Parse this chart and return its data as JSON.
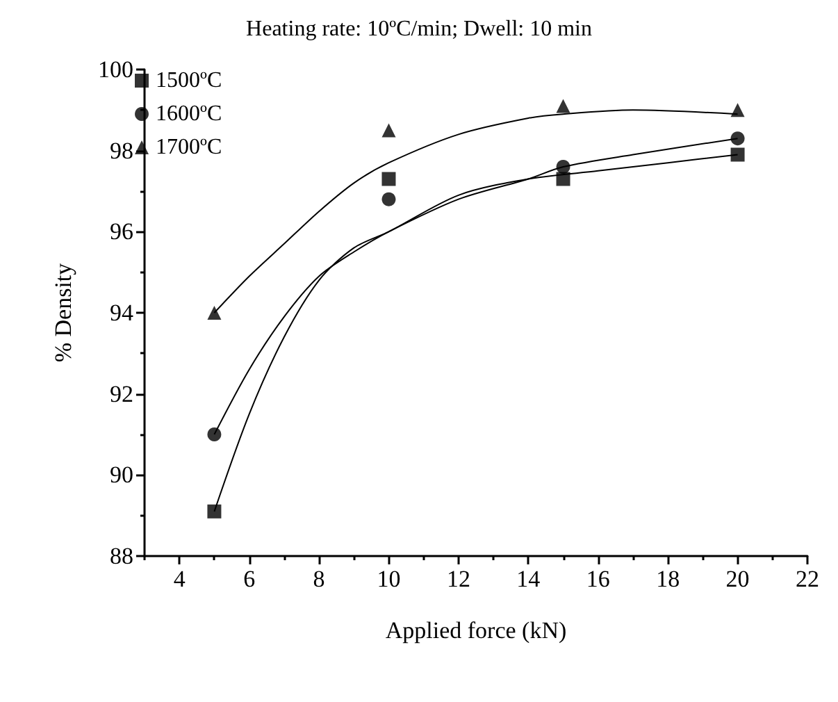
{
  "chart_data": {
    "type": "scatter",
    "title": "Heating rate: 10ºC/min; Dwell: 10 min",
    "xlabel": "Applied force (kN)",
    "ylabel": "% Density",
    "xlim": [
      3,
      22
    ],
    "xticks": [
      4,
      6,
      8,
      10,
      12,
      14,
      16,
      18,
      20,
      22
    ],
    "ylim": [
      88,
      100
    ],
    "yticks": [
      88,
      90,
      92,
      94,
      96,
      98,
      100
    ],
    "grid": false,
    "legend": "top left",
    "series": [
      {
        "name": "1500ºC",
        "marker": "square",
        "color": "#000000",
        "x": [
          5,
          10,
          15,
          20
        ],
        "values": [
          89.1,
          97.3,
          97.3,
          97.9
        ]
      },
      {
        "name": "1600ºC",
        "marker": "circle",
        "color": "#000000",
        "x": [
          5,
          10,
          15,
          20
        ],
        "values": [
          91.0,
          96.8,
          97.6,
          98.3
        ]
      },
      {
        "name": "1700ºC",
        "marker": "triangle",
        "color": "#000000",
        "x": [
          5,
          10,
          15,
          20
        ],
        "values": [
          94.0,
          98.5,
          99.1,
          99.0
        ]
      },
      {
        "type": "line",
        "marker": "none",
        "color": "#000000",
        "x": [
          5,
          6,
          7,
          8,
          9,
          10,
          12,
          14,
          16,
          18,
          20
        ],
        "values": [
          89.1,
          91.5,
          93.4,
          94.8,
          95.6,
          96.0,
          96.9,
          97.3,
          97.5,
          97.7,
          97.9
        ]
      },
      {
        "type": "line",
        "marker": "none",
        "color": "#000000",
        "x": [
          5,
          6,
          7,
          8,
          9,
          10,
          12,
          14,
          15,
          17,
          20
        ],
        "values": [
          91.0,
          92.6,
          93.9,
          94.9,
          95.5,
          96.0,
          96.8,
          97.3,
          97.6,
          97.9,
          98.3
        ]
      },
      {
        "type": "line",
        "marker": "none",
        "color": "#000000",
        "x": [
          5,
          6,
          7,
          8,
          9,
          10,
          12,
          14,
          15,
          17,
          20
        ],
        "values": [
          94.0,
          94.9,
          95.7,
          96.5,
          97.2,
          97.7,
          98.4,
          98.8,
          98.9,
          99.0,
          98.9
        ]
      }
    ]
  }
}
